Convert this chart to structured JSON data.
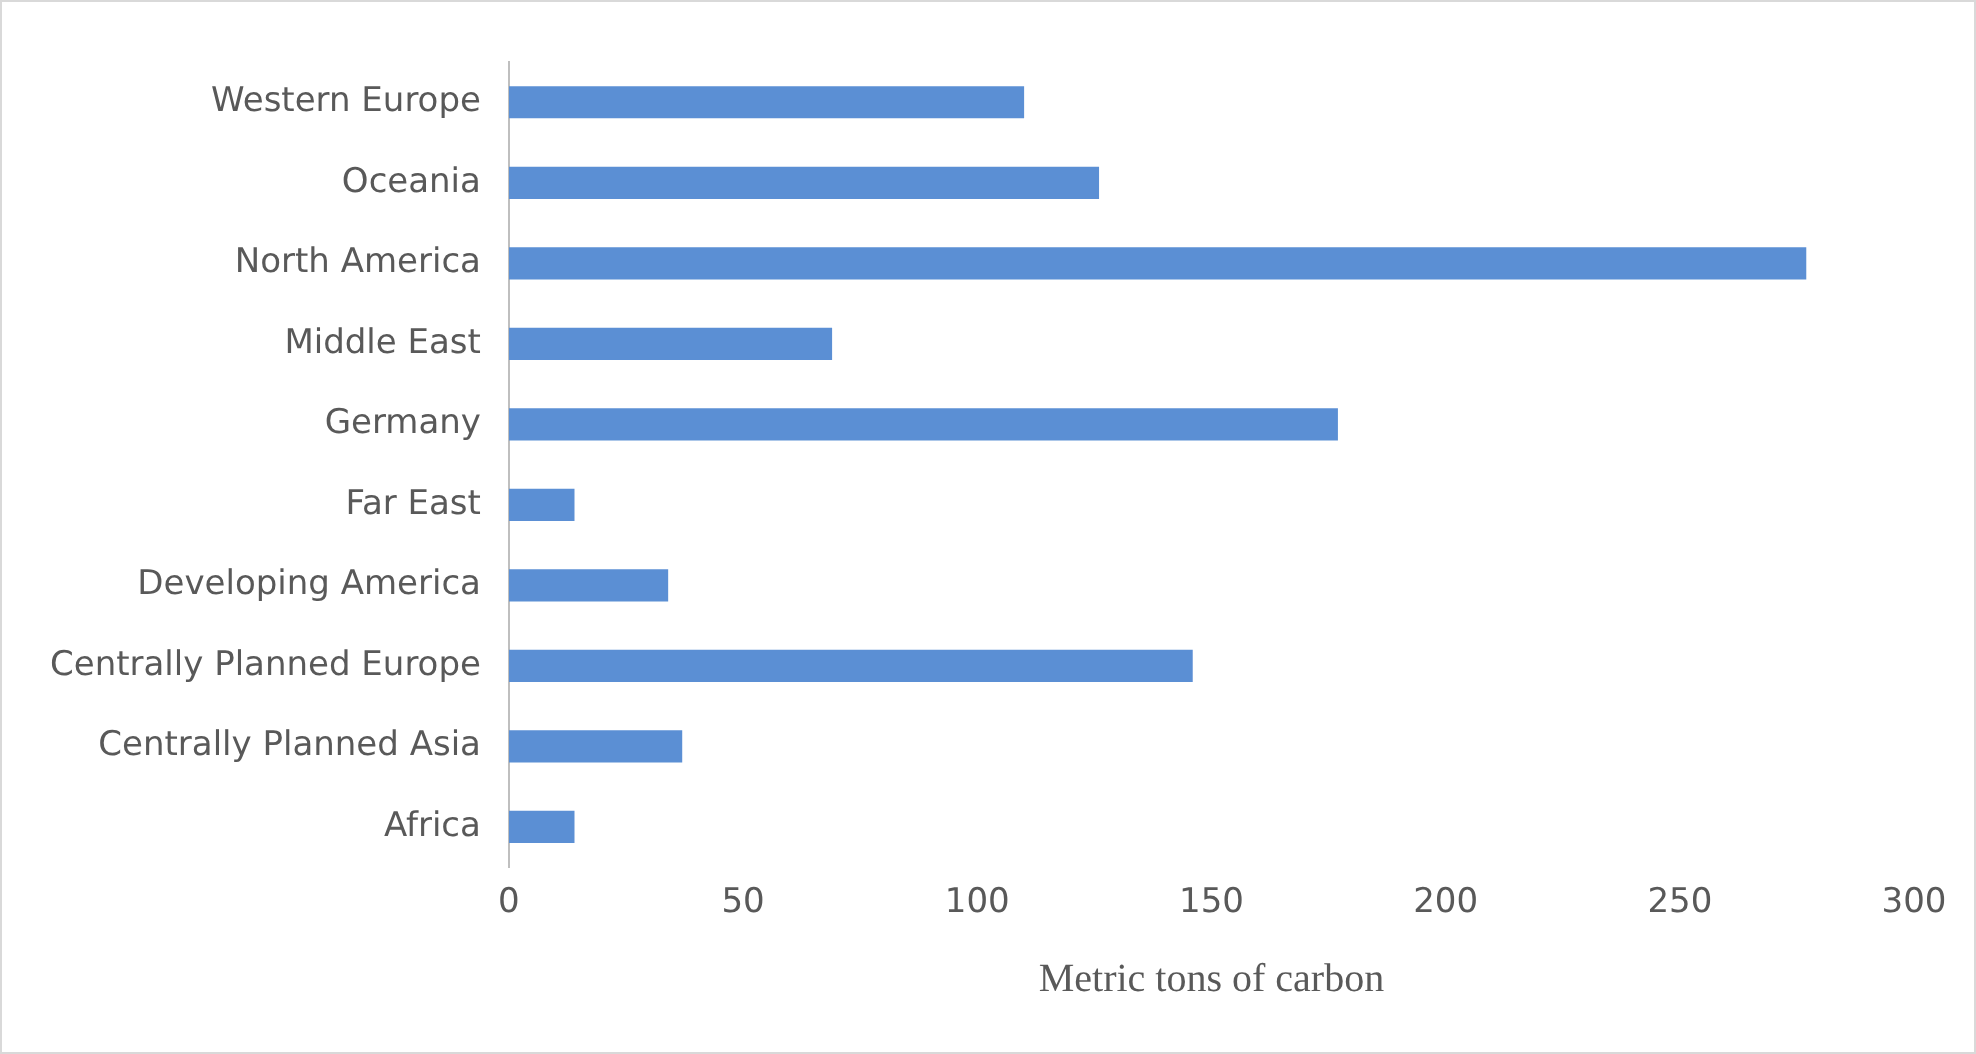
{
  "chart_data": {
    "type": "bar",
    "orientation": "horizontal",
    "xlabel": "Metric tons of carbon",
    "categories": [
      "Western Europe",
      "Oceania",
      "North America",
      "Middle East",
      "Germany",
      "Far East",
      "Developing America",
      "Centrally Planned Europe",
      "Centrally Planned Asia",
      "Africa"
    ],
    "values": [
      110,
      126,
      277,
      69,
      177,
      14,
      34,
      146,
      37,
      14
    ],
    "color": "#5b8fd4",
    "xlim": [
      0,
      300
    ],
    "xticks": [
      0,
      50,
      100,
      150,
      200,
      250,
      300
    ],
    "grid": false,
    "legend": false
  }
}
